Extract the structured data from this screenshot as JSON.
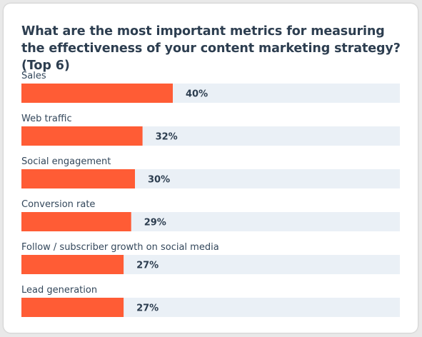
{
  "chart_data": {
    "type": "bar",
    "orientation": "horizontal",
    "title": "What are the most important metrics for measuring the effectiveness of your content marketing strategy? (Top 6)",
    "categories": [
      "Sales",
      "Web traffic",
      "Social engagement",
      "Conversion rate",
      "Follow / subscriber growth on social media",
      "Lead generation"
    ],
    "values": [
      40,
      32,
      30,
      29,
      27,
      27
    ],
    "value_labels": [
      "40%",
      "32%",
      "30%",
      "29%",
      "27%",
      "27%"
    ],
    "xlim": [
      0,
      100
    ],
    "grid": false,
    "legend": "none",
    "colors": {
      "bar": "#ff5c35",
      "track": "#eaf0f6"
    }
  }
}
